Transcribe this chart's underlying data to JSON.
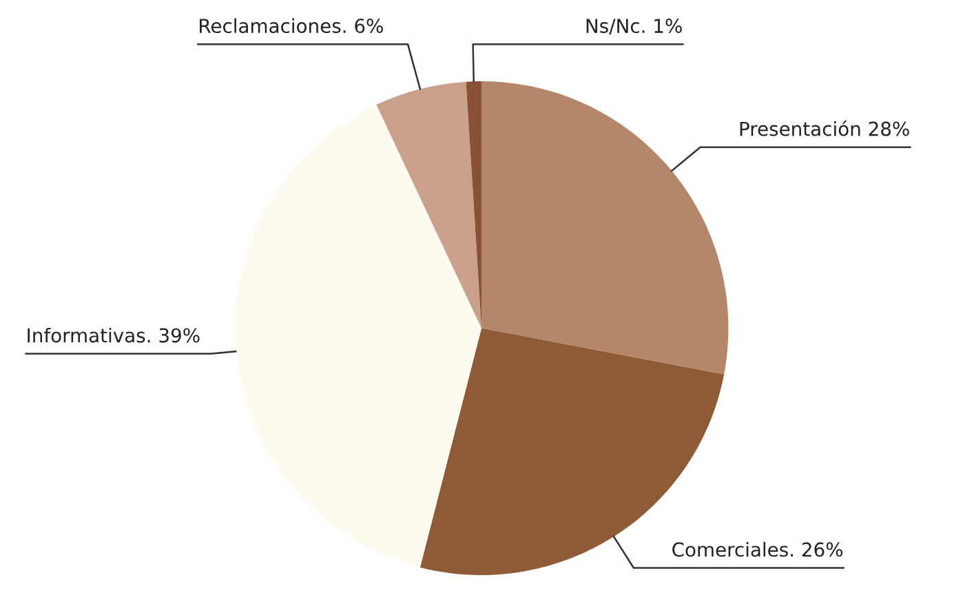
{
  "chart_data": {
    "type": "pie",
    "categories": [
      "Presentación",
      "Comerciales.",
      "Informativas.",
      "Reclamaciones.",
      "Ns/Nc."
    ],
    "values": [
      28,
      26,
      39,
      6,
      1
    ],
    "value_labels": [
      "28%",
      "26%",
      "39%",
      "6%",
      "1%"
    ],
    "colors": [
      "#b5876a",
      "#8f5a36",
      "#fdfaf0",
      "#c9a18a",
      "#8a5234"
    ],
    "legend": false
  }
}
